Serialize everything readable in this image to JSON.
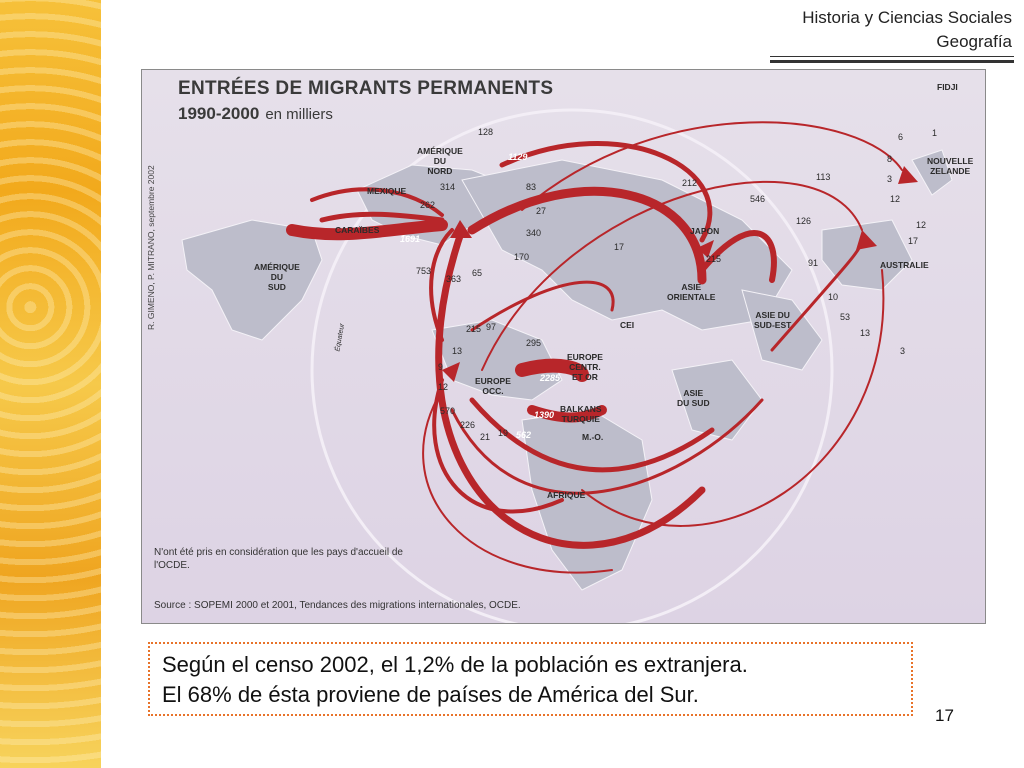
{
  "header": {
    "line1": "Historia y Ciencias Sociales",
    "line2": "Geografía"
  },
  "map": {
    "title": "ENTRÉES DE MIGRANTS PERMANENTS",
    "subtitle": "1990-2000",
    "unit": "en milliers",
    "credit": "R. GIMENO, P. MITRANO, septembre 2002",
    "equator": "Équateur",
    "note": "N'ont été pris en considération que les pays d'accueil de l'OCDE.",
    "source": "Source : SOPEMI 2000 et 2001, Tendances des migrations internationales, OCDE.",
    "regions": {
      "fidji": "FIDJI",
      "nouvelle_zelande": "NOUVELLE\nZELANDE",
      "amerique_nord": "AMÉRIQUE\nDU\nNORD",
      "mexique": "MEXIQUE",
      "caraibes": "CARAÏBES",
      "amerique_sud": "AMÉRIQUE\nDU\nSUD",
      "japon": "JAPON",
      "asie_orientale": "ASIE\nORIENTALE",
      "australie": "AUSTRALIE",
      "asie_sud_est": "ASIE DU\nSUD-EST",
      "cei": "CEI",
      "europe_centre": "EUROPE\nCENTR.\nET OR",
      "europe_occ": "EUROPE\nOCC.",
      "balkans": "BALKANS\nTURQUIE",
      "mo": "M.-O.",
      "asie_sud": "ASIE\nDU SUD",
      "afrique": "AFRIQUE"
    },
    "flows": {
      "f128": "128",
      "f1129": "1129",
      "f83": "83",
      "f212": "212",
      "f546": "546",
      "f113": "113",
      "f126": "126",
      "f6": "6",
      "f1": "1",
      "f8": "8",
      "f3a": "3",
      "f12a": "12",
      "f12b": "12",
      "f17a": "17",
      "f27": "27",
      "f340": "340",
      "f170": "170",
      "f17b": "17",
      "f1691": "1691",
      "f314": "314",
      "f262": "262",
      "f753": "753",
      "f363": "363",
      "f65": "65",
      "f215": "215",
      "f97": "97",
      "f295": "295",
      "f2285": "2285",
      "f1390": "1390",
      "f13": "13",
      "f9": "9",
      "f12c": "12",
      "f570": "570",
      "f226": "226",
      "f21": "21",
      "f19": "19",
      "f562": "562",
      "f91": "91",
      "f10": "10",
      "f53": "53",
      "f13b": "13",
      "f3b": "3",
      "f215b": "215"
    }
  },
  "caption": {
    "line1": "Según el censo 2002, el 1,2% de la población es extranjera.",
    "line2": "El 68% de ésta proviene de países de América del Sur."
  },
  "page_number": "17",
  "colors": {
    "arrow": "#b8262a",
    "land": "#bdbdcb",
    "accent_dotted": "#e8732a"
  }
}
